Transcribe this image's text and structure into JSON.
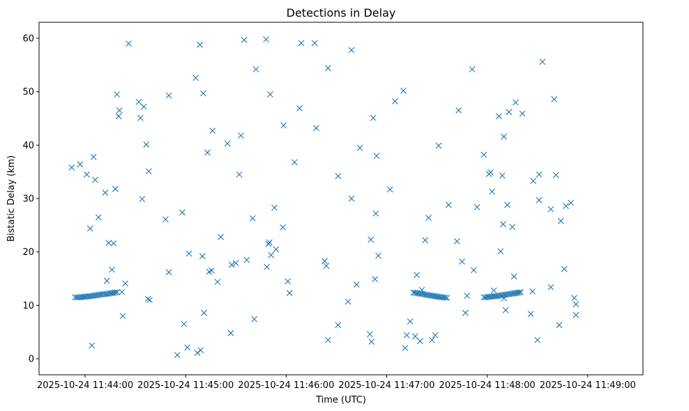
{
  "chart_data": {
    "type": "scatter",
    "title": "Detections in Delay",
    "xlabel": "Time (UTC)",
    "ylabel": "Bistatic Delay (km)",
    "marker": "x",
    "color": "#1f77b4",
    "x_unit": "seconds since 2025-10-24 11:44:00 UTC",
    "xlim": [
      -27.5,
      333
    ],
    "ylim": [
      -3,
      63
    ],
    "xticks": [
      0,
      60,
      120,
      180,
      240,
      300
    ],
    "xtick_labels": [
      "2025-10-24 11:44:00",
      "2025-10-24 11:45:00",
      "2025-10-24 11:46:00",
      "2025-10-24 11:47:00",
      "2025-10-24 11:48:00",
      "2025-10-24 11:49:00"
    ],
    "yticks": [
      0,
      10,
      20,
      30,
      40,
      50,
      60
    ],
    "ytick_labels": [
      "0",
      "10",
      "20",
      "30",
      "40",
      "50",
      "60"
    ],
    "points": [
      [
        -8,
        35.8
      ],
      [
        -3,
        36.4
      ],
      [
        1,
        34.5
      ],
      [
        3,
        24.4
      ],
      [
        4,
        2.5
      ],
      [
        5,
        37.8
      ],
      [
        6,
        33.5
      ],
      [
        8,
        26.5
      ],
      [
        12,
        31.1
      ],
      [
        13,
        14.6
      ],
      [
        14,
        21.7
      ],
      [
        16,
        16.7
      ],
      [
        17,
        21.6
      ],
      [
        18,
        31.8
      ],
      [
        19,
        49.5
      ],
      [
        20,
        45.4
      ],
      [
        20.5,
        46.5
      ],
      [
        22,
        12.5
      ],
      [
        22.5,
        8.0
      ],
      [
        24,
        14.1
      ],
      [
        26,
        59.0
      ],
      [
        32,
        48.1
      ],
      [
        33,
        45.1
      ],
      [
        34,
        29.9
      ],
      [
        35,
        47.2
      ],
      [
        36.5,
        40.1
      ],
      [
        37.5,
        11.2
      ],
      [
        38,
        35.1
      ],
      [
        38.5,
        11.0
      ],
      [
        48,
        26.1
      ],
      [
        50,
        16.2
      ],
      [
        50,
        49.3
      ],
      [
        55,
        0.7
      ],
      [
        58,
        27.4
      ],
      [
        59,
        6.5
      ],
      [
        61,
        2.1
      ],
      [
        62,
        19.7
      ],
      [
        66,
        52.6
      ],
      [
        67,
        1.1
      ],
      [
        69,
        1.6
      ],
      [
        68.5,
        58.8
      ],
      [
        70,
        19.2
      ],
      [
        70.5,
        49.7
      ],
      [
        71,
        8.6
      ],
      [
        73,
        38.6
      ],
      [
        74,
        16.3
      ],
      [
        75.5,
        16.5
      ],
      [
        76,
        42.7
      ],
      [
        79,
        14.4
      ],
      [
        81,
        22.8
      ],
      [
        85,
        40.3
      ],
      [
        87,
        4.8
      ],
      [
        87.5,
        17.6
      ],
      [
        90,
        17.9
      ],
      [
        92,
        34.5
      ],
      [
        93,
        41.8
      ],
      [
        95,
        59.7
      ],
      [
        96.5,
        18.5
      ],
      [
        100,
        26.3
      ],
      [
        101,
        7.4
      ],
      [
        102,
        54.2
      ],
      [
        108,
        59.8
      ],
      [
        108.5,
        17.2
      ],
      [
        109.5,
        21.5
      ],
      [
        110,
        21.8
      ],
      [
        110.5,
        49.5
      ],
      [
        111,
        19.4
      ],
      [
        113,
        28.3
      ],
      [
        114,
        20.5
      ],
      [
        118,
        24.6
      ],
      [
        118.5,
        43.7
      ],
      [
        121,
        14.5
      ],
      [
        122,
        12.3
      ],
      [
        125,
        36.8
      ],
      [
        128,
        46.9
      ],
      [
        129,
        59.1
      ],
      [
        137,
        59.1
      ],
      [
        138,
        43.2
      ],
      [
        143,
        18.3
      ],
      [
        144,
        17.4
      ],
      [
        145,
        3.5
      ],
      [
        145,
        54.4
      ],
      [
        151,
        6.3
      ],
      [
        151,
        34.2
      ],
      [
        157,
        10.7
      ],
      [
        159,
        30.0
      ],
      [
        159,
        57.8
      ],
      [
        162,
        13.9
      ],
      [
        164,
        39.5
      ],
      [
        170,
        4.6
      ],
      [
        170.5,
        22.3
      ],
      [
        171,
        3.2
      ],
      [
        172,
        45.1
      ],
      [
        173,
        14.9
      ],
      [
        173.5,
        27.2
      ],
      [
        174,
        38.0
      ],
      [
        175,
        19.3
      ],
      [
        182,
        31.7
      ],
      [
        185,
        48.2
      ],
      [
        190,
        50.2
      ],
      [
        191,
        2.0
      ],
      [
        192,
        4.4
      ],
      [
        194,
        7.0
      ],
      [
        197,
        4.2
      ],
      [
        198,
        15.7
      ],
      [
        200,
        3.3
      ],
      [
        203,
        22.2
      ],
      [
        205,
        26.4
      ],
      [
        207,
        3.5
      ],
      [
        209,
        4.4
      ],
      [
        211,
        39.9
      ],
      [
        217,
        28.8
      ],
      [
        222,
        22.0
      ],
      [
        223,
        46.5
      ],
      [
        225,
        18.2
      ],
      [
        227,
        8.6
      ],
      [
        228,
        11.8
      ],
      [
        231,
        54.2
      ],
      [
        232,
        16.6
      ],
      [
        234,
        28.4
      ],
      [
        238,
        38.2
      ],
      [
        241,
        34.6
      ],
      [
        242,
        34.9
      ],
      [
        243,
        31.3
      ],
      [
        247,
        45.4
      ],
      [
        248,
        20.1
      ],
      [
        249,
        34.3
      ],
      [
        249.5,
        25.2
      ],
      [
        250,
        41.6
      ],
      [
        251,
        9.1
      ],
      [
        252,
        28.8
      ],
      [
        253,
        46.2
      ],
      [
        255,
        24.7
      ],
      [
        256,
        15.4
      ],
      [
        257,
        48.0
      ],
      [
        261,
        45.9
      ],
      [
        266,
        8.4
      ],
      [
        267,
        12.6
      ],
      [
        267.5,
        33.3
      ],
      [
        270,
        3.5
      ],
      [
        271,
        29.7
      ],
      [
        271,
        34.5
      ],
      [
        273,
        55.6
      ],
      [
        278,
        28.0
      ],
      [
        278,
        13.4
      ],
      [
        280,
        48.6
      ],
      [
        281,
        34.4
      ],
      [
        283,
        6.3
      ],
      [
        284,
        25.8
      ],
      [
        286,
        16.8
      ],
      [
        287,
        28.6
      ],
      [
        290,
        29.2
      ],
      [
        292,
        11.4
      ],
      [
        293,
        10.2
      ],
      [
        293,
        8.2
      ],
      [
        -6,
        11.5
      ],
      [
        -5,
        11.5
      ],
      [
        -4,
        11.5
      ],
      [
        -3,
        11.5
      ],
      [
        -2,
        11.55
      ],
      [
        -1,
        11.6
      ],
      [
        0,
        11.6
      ],
      [
        1,
        11.65
      ],
      [
        2,
        11.7
      ],
      [
        3,
        11.7
      ],
      [
        4,
        11.75
      ],
      [
        5,
        11.8
      ],
      [
        6,
        11.85
      ],
      [
        7,
        11.9
      ],
      [
        8,
        11.95
      ],
      [
        9,
        12.0
      ],
      [
        10,
        12.05
      ],
      [
        11,
        12.1
      ],
      [
        12,
        12.1
      ],
      [
        13,
        12.15
      ],
      [
        14,
        12.2
      ],
      [
        15,
        12.25
      ],
      [
        16,
        12.3
      ],
      [
        17,
        12.35
      ],
      [
        18,
        12.4
      ],
      [
        19,
        12.45
      ],
      [
        196,
        12.4
      ],
      [
        197,
        12.35
      ],
      [
        198,
        12.3
      ],
      [
        199,
        12.25
      ],
      [
        200,
        12.2
      ],
      [
        201,
        12.15
      ],
      [
        202,
        12.1
      ],
      [
        203,
        12.0
      ],
      [
        204,
        11.95
      ],
      [
        205,
        11.9
      ],
      [
        206,
        11.85
      ],
      [
        207,
        11.8
      ],
      [
        208,
        11.75
      ],
      [
        209,
        11.7
      ],
      [
        210,
        11.65
      ],
      [
        211,
        11.6
      ],
      [
        212,
        11.55
      ],
      [
        213,
        11.5
      ],
      [
        214,
        11.5
      ],
      [
        215,
        11.45
      ],
      [
        216,
        11.4
      ],
      [
        201,
        12.9
      ],
      [
        238,
        11.5
      ],
      [
        239,
        11.5
      ],
      [
        240,
        11.55
      ],
      [
        241,
        11.6
      ],
      [
        242,
        11.6
      ],
      [
        243,
        11.65
      ],
      [
        244,
        11.7
      ],
      [
        245,
        11.7
      ],
      [
        246,
        11.75
      ],
      [
        247,
        11.8
      ],
      [
        248,
        11.85
      ],
      [
        249,
        11.9
      ],
      [
        250,
        11.95
      ],
      [
        251,
        12.0
      ],
      [
        252,
        12.05
      ],
      [
        253,
        12.1
      ],
      [
        254,
        12.15
      ],
      [
        255,
        12.2
      ],
      [
        256,
        12.25
      ],
      [
        257,
        12.3
      ],
      [
        258,
        12.35
      ],
      [
        259,
        12.4
      ],
      [
        260,
        12.45
      ],
      [
        244,
        12.8
      ],
      [
        250,
        11.3
      ]
    ]
  }
}
